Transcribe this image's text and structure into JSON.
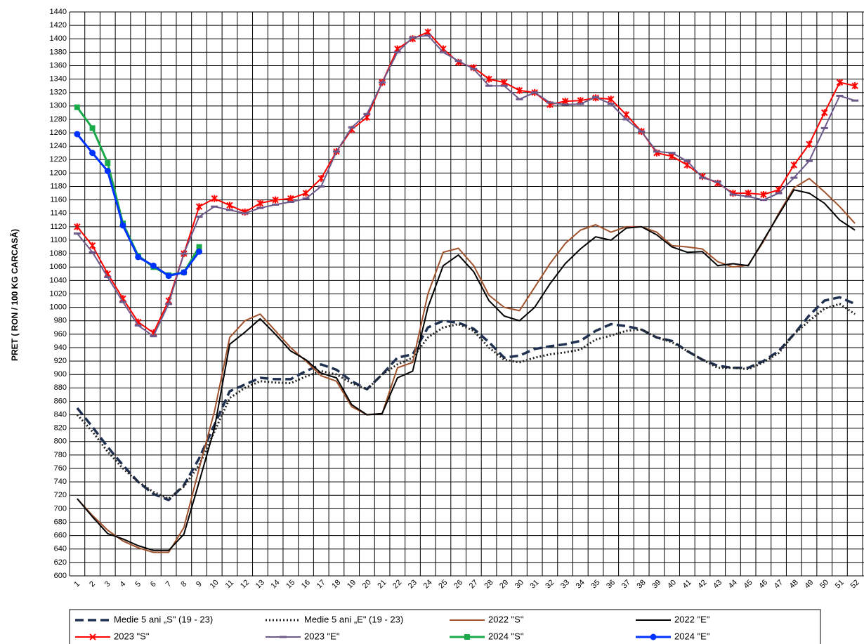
{
  "chart_data": {
    "type": "line",
    "y_label": "PRET ( RON / 100 KG CARCASĂ)",
    "categories": [
      "1",
      "2",
      "3",
      "4",
      "5",
      "6",
      "7",
      "8",
      "9",
      "10",
      "11",
      "12",
      "13",
      "14",
      "15",
      "16",
      "17",
      "18",
      "19",
      "20",
      "21",
      "22",
      "23",
      "24",
      "25",
      "26",
      "27",
      "28",
      "29",
      "30",
      "31",
      "32",
      "33",
      "34",
      "35",
      "36",
      "37",
      "38",
      "39",
      "40",
      "41",
      "42",
      "43",
      "44",
      "45",
      "46",
      "47",
      "48",
      "49",
      "50",
      "51",
      "52"
    ],
    "ylim": [
      600,
      1440
    ],
    "yticks": [
      600,
      620,
      640,
      660,
      680,
      700,
      720,
      740,
      760,
      780,
      800,
      820,
      840,
      860,
      880,
      900,
      920,
      940,
      960,
      980,
      1000,
      1020,
      1040,
      1060,
      1080,
      1100,
      1120,
      1140,
      1160,
      1180,
      1200,
      1220,
      1240,
      1260,
      1280,
      1300,
      1320,
      1340,
      1360,
      1380,
      1400,
      1420,
      1440
    ],
    "grid": true,
    "series": [
      {
        "name": "Medie 5 ani „S\" (19 - 23)",
        "color": "#1f3050",
        "dash": "dashed",
        "marker": "none",
        "values": [
          850,
          822,
          792,
          765,
          740,
          722,
          713,
          735,
          775,
          825,
          875,
          885,
          895,
          893,
          893,
          905,
          915,
          907,
          890,
          878,
          900,
          925,
          930,
          970,
          980,
          977,
          968,
          948,
          925,
          928,
          938,
          942,
          945,
          950,
          965,
          975,
          972,
          967,
          955,
          950,
          935,
          922,
          913,
          910,
          910,
          920,
          935,
          960,
          988,
          1010,
          1015,
          1005
        ]
      },
      {
        "name": "Medie 5 ani „E\" (19 - 23)",
        "color": "#222222",
        "dash": "dotted",
        "marker": "none",
        "values": [
          840,
          815,
          785,
          760,
          740,
          725,
          715,
          733,
          765,
          815,
          865,
          880,
          890,
          888,
          887,
          897,
          905,
          900,
          887,
          878,
          900,
          915,
          925,
          955,
          970,
          975,
          965,
          940,
          922,
          918,
          925,
          930,
          933,
          937,
          952,
          958,
          965,
          967,
          955,
          948,
          935,
          922,
          910,
          910,
          908,
          918,
          932,
          960,
          980,
          998,
          1005,
          990
        ]
      },
      {
        "name": "2022 \"S\"",
        "color": "#a0522d",
        "dash": "solid",
        "marker": "none",
        "values": [
          715,
          690,
          668,
          652,
          642,
          635,
          635,
          672,
          760,
          845,
          955,
          980,
          990,
          965,
          940,
          920,
          898,
          890,
          852,
          840,
          842,
          910,
          918,
          1020,
          1082,
          1088,
          1062,
          1018,
          1000,
          995,
          1030,
          1065,
          1095,
          1115,
          1123,
          1112,
          1120,
          1120,
          1112,
          1092,
          1090,
          1087,
          1068,
          1060,
          1063,
          1098,
          1140,
          1178,
          1192,
          1172,
          1150,
          1125
        ]
      },
      {
        "name": "2022 \"E\"",
        "color": "#000000",
        "dash": "solid",
        "marker": "none",
        "values": [
          715,
          688,
          663,
          655,
          645,
          638,
          638,
          662,
          740,
          820,
          945,
          963,
          983,
          960,
          935,
          922,
          902,
          895,
          855,
          840,
          842,
          895,
          905,
          1000,
          1062,
          1078,
          1053,
          1010,
          987,
          980,
          1000,
          1035,
          1065,
          1087,
          1105,
          1100,
          1118,
          1120,
          1108,
          1090,
          1082,
          1083,
          1062,
          1065,
          1062,
          1100,
          1138,
          1175,
          1170,
          1155,
          1130,
          1115
        ]
      },
      {
        "name": "2023 \"S\"",
        "color": "#ff0000",
        "dash": "solid",
        "marker": "x",
        "values": [
          1120,
          1092,
          1050,
          1013,
          978,
          962,
          1010,
          1080,
          1150,
          1162,
          1152,
          1142,
          1155,
          1160,
          1162,
          1170,
          1192,
          1232,
          1265,
          1283,
          1335,
          1385,
          1400,
          1410,
          1385,
          1365,
          1357,
          1340,
          1335,
          1323,
          1320,
          1302,
          1307,
          1308,
          1312,
          1310,
          1287,
          1262,
          1230,
          1225,
          1212,
          1195,
          1185,
          1170,
          1170,
          1168,
          1175,
          1212,
          1243,
          1290,
          1335,
          1330
        ]
      },
      {
        "name": "2023 \"E\"",
        "color": "#6d5a8a",
        "dash": "solid",
        "marker": "dash",
        "values": [
          1110,
          1082,
          1045,
          1008,
          973,
          957,
          1005,
          1080,
          1135,
          1150,
          1145,
          1140,
          1148,
          1153,
          1157,
          1162,
          1180,
          1232,
          1268,
          1288,
          1335,
          1380,
          1402,
          1405,
          1380,
          1367,
          1355,
          1330,
          1330,
          1310,
          1320,
          1305,
          1302,
          1303,
          1313,
          1303,
          1280,
          1262,
          1232,
          1230,
          1218,
          1193,
          1187,
          1168,
          1165,
          1160,
          1170,
          1193,
          1218,
          1267,
          1315,
          1308
        ]
      },
      {
        "name": "2024 \"S\"",
        "color": "#1aaa4a",
        "dash": "solid",
        "marker": "square",
        "values": [
          1298,
          1267,
          1215,
          1125,
          1077,
          1060,
          1048,
          1052,
          1090,
          null,
          null,
          null,
          null,
          null,
          null,
          null,
          null,
          null,
          null,
          null,
          null,
          null,
          null,
          null,
          null,
          null,
          null,
          null,
          null,
          null,
          null,
          null,
          null,
          null,
          null,
          null,
          null,
          null,
          null,
          null,
          null,
          null,
          null,
          null,
          null,
          null,
          null,
          null,
          null,
          null,
          null,
          null
        ]
      },
      {
        "name": "2024 \"E\"",
        "color": "#0033ff",
        "dash": "solid",
        "marker": "circle",
        "values": [
          1258,
          1230,
          1203,
          1122,
          1075,
          1062,
          1047,
          1052,
          1083,
          null,
          null,
          null,
          null,
          null,
          null,
          null,
          null,
          null,
          null,
          null,
          null,
          null,
          null,
          null,
          null,
          null,
          null,
          null,
          null,
          null,
          null,
          null,
          null,
          null,
          null,
          null,
          null,
          null,
          null,
          null,
          null,
          null,
          null,
          null,
          null,
          null,
          null,
          null,
          null,
          null,
          null,
          null
        ]
      }
    ]
  }
}
